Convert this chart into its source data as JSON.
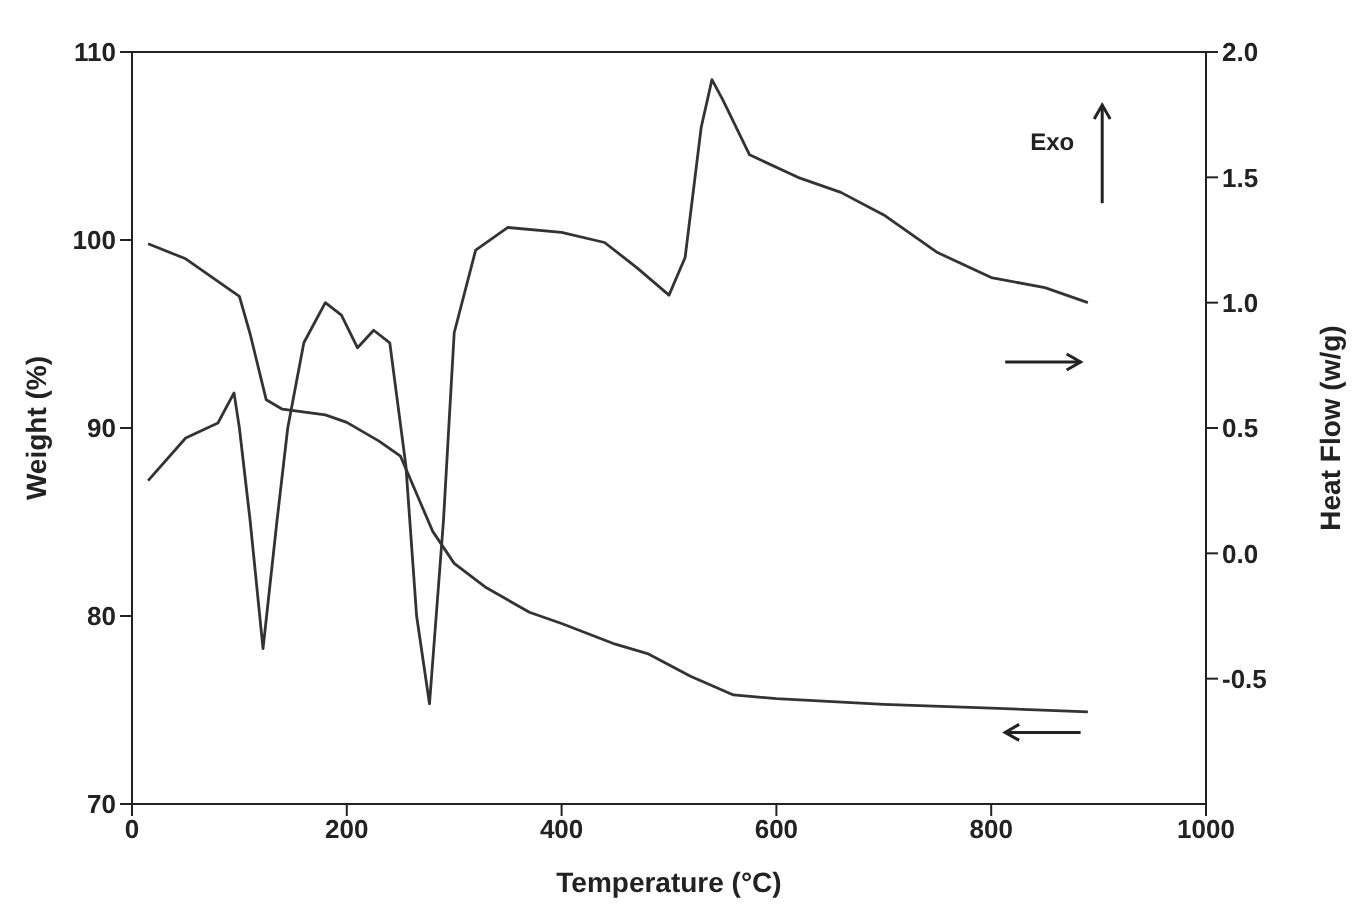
{
  "chart_data": {
    "type": "line",
    "xlabel": "Temperature (°C)",
    "ylabel": "Weight (%)",
    "y2label": "Heat Flow (w/g)",
    "xlim": [
      0,
      1000
    ],
    "xticks": [
      0,
      200,
      400,
      600,
      800,
      1000
    ],
    "ylim": [
      70,
      110
    ],
    "yticks": [
      70,
      80,
      90,
      100,
      110
    ],
    "y2lim": [
      -1,
      2
    ],
    "y2ticks": [
      -0.5,
      {
        "value": 0,
        "label": "0.0"
      },
      0.5,
      {
        "value": 1,
        "label": "1.0"
      },
      1.5,
      {
        "value": 2,
        "label": "2.0"
      }
    ],
    "marker": "none",
    "line_style": "solid",
    "annotations": [
      "Exo"
    ],
    "series": [
      {
        "color": "#333333",
        "axis": "y",
        "x": [
          15,
          50,
          80,
          100,
          110,
          125,
          140,
          180,
          200,
          230,
          250,
          265,
          280,
          300,
          330,
          370,
          400,
          450,
          480,
          520,
          560,
          600,
          700,
          800,
          890
        ],
        "values": [
          99.8,
          99,
          97.8,
          97,
          95,
          91.5,
          91,
          90.7,
          90.3,
          89.3,
          88.5,
          86.5,
          84.5,
          82.8,
          81.5,
          80.2,
          79.6,
          78.5,
          78,
          76.8,
          75.8,
          75.6,
          75.3,
          75.1,
          74.9
        ]
      },
      {
        "color": "#333333",
        "axis": "y2",
        "x": [
          15,
          50,
          80,
          95,
          100,
          110,
          122,
          135,
          145,
          160,
          180,
          195,
          210,
          225,
          240,
          255,
          265,
          277,
          290,
          300,
          320,
          350,
          400,
          440,
          470,
          500,
          515,
          530,
          540,
          550,
          575,
          620,
          660,
          700,
          750,
          800,
          850,
          890
        ],
        "values": [
          0.29,
          0.46,
          0.52,
          0.64,
          0.5,
          0.13,
          -0.38,
          0.13,
          0.5,
          0.84,
          1.0,
          0.95,
          0.82,
          0.89,
          0.84,
          0.35,
          -0.25,
          -0.6,
          0.13,
          0.88,
          1.21,
          1.3,
          1.28,
          1.24,
          1.14,
          1.03,
          1.18,
          1.7,
          1.89,
          1.81,
          1.59,
          1.5,
          1.44,
          1.35,
          1.2,
          1.1,
          1.06,
          1.0
        ]
      }
    ]
  }
}
